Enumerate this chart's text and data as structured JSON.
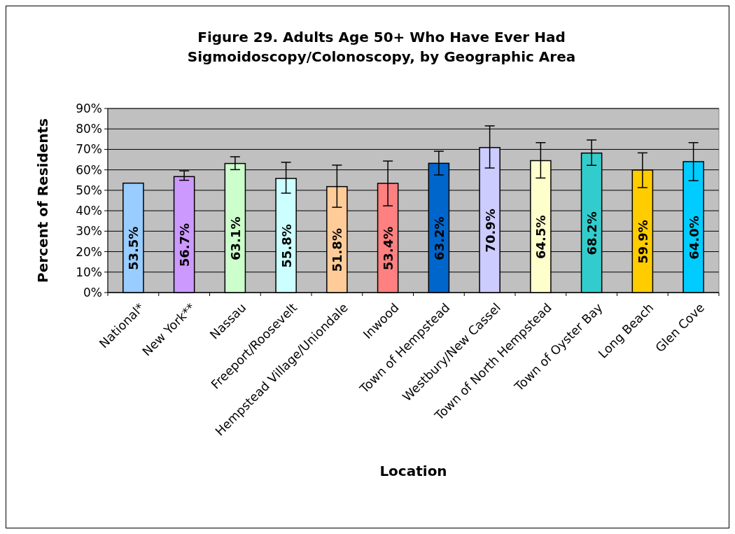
{
  "chart_data": {
    "type": "bar",
    "title": "Figure 29.  Adults Age 50+ Who Have Ever Had Sigmoidoscopy/Colonoscopy, by Geographic Area",
    "xlabel": "Location",
    "ylabel": "Percent of Residents",
    "categories": [
      "National*",
      "New York**",
      "Nassau",
      "Freeport/Roosevelt",
      "Hempstead Village/Uniondale",
      "Inwood",
      "Town of Hempstead",
      "Westbury/New Cassel",
      "Town of North Hempstead",
      "Town of Oyster Bay",
      "Long Beach",
      "Glen Cove"
    ],
    "values": [
      53.5,
      56.7,
      63.1,
      55.8,
      51.8,
      53.4,
      63.2,
      70.9,
      64.5,
      68.2,
      59.9,
      64.0
    ],
    "value_labels": [
      "53.5%",
      "56.7%",
      "63.1%",
      "55.8%",
      "51.8%",
      "53.4%",
      "63.2%",
      "70.9%",
      "64.5%",
      "68.2%",
      "59.9%",
      "64.0%"
    ],
    "errors": [
      null,
      [
        54.9,
        59.5
      ],
      [
        60.1,
        66.4
      ],
      [
        48.6,
        63.7
      ],
      [
        41.7,
        62.3
      ],
      [
        42.4,
        64.3
      ],
      [
        57.5,
        69.1
      ],
      [
        60.9,
        81.5
      ],
      [
        56.0,
        73.3
      ],
      [
        62.2,
        74.6
      ],
      [
        51.3,
        68.3
      ],
      [
        54.7,
        73.3
      ]
    ],
    "colors": [
      "#99ccff",
      "#cc99ff",
      "#ccffcc",
      "#ccffff",
      "#ffcc99",
      "#ff8080",
      "#0066cc",
      "#ccccff",
      "#ffffcc",
      "#33cccc",
      "#ffcc00",
      "#00ccff"
    ],
    "ylim": [
      0,
      90
    ],
    "yticks": [
      {
        "value": 0,
        "label": "0%"
      },
      {
        "value": 10,
        "label": "10%"
      },
      {
        "value": 20,
        "label": "20%"
      },
      {
        "value": 30,
        "label": "30%"
      },
      {
        "value": 40,
        "label": "40%"
      },
      {
        "value": 50,
        "label": "50%"
      },
      {
        "value": 60,
        "label": "60%"
      },
      {
        "value": 70,
        "label": "70%"
      },
      {
        "value": 80,
        "label": "80%"
      },
      {
        "value": 90,
        "label": "90%"
      }
    ],
    "grid": "y"
  }
}
